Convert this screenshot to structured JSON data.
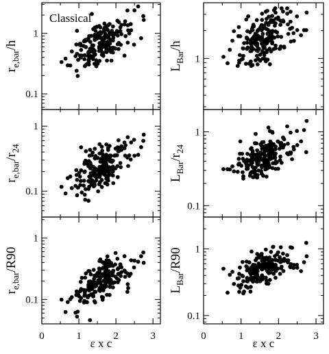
{
  "chart_data": {
    "type": "scatter",
    "xlabel": "ε x c",
    "annotation": "Classical",
    "panels": [
      {
        "id": "re_h",
        "ylabel": {
          "main": "r",
          "sub": "e,bar",
          "suffix": "/h"
        },
        "xlim": [
          0,
          3.2
        ],
        "ylim": [
          0.055,
          3.2
        ],
        "yscale": "log",
        "xticks": [
          0,
          1,
          2,
          3
        ],
        "yticks": [
          {
            "v": 0.1,
            "label": "0.1"
          },
          {
            "v": 1,
            "label": "1"
          }
        ],
        "center": 0.7,
        "slope": 0.3,
        "spread": 0.34,
        "xlow": 0.22,
        "xhigh": 0.3
      },
      {
        "id": "lbar_h",
        "ylabel": {
          "main": "L",
          "sub": "Bar",
          "suffix": "/h"
        },
        "xlim": [
          0,
          3.2
        ],
        "ylim": [
          0.28,
          4.0
        ],
        "yscale": "log",
        "xticks": [
          0,
          1,
          2,
          3
        ],
        "yticks": [
          {
            "v": 1,
            "label": "1"
          }
        ],
        "center": 1.65,
        "slope": 0.18,
        "spread": 0.26,
        "xlow": 0.22,
        "xhigh": 0.3
      },
      {
        "id": "re_r24",
        "ylabel": {
          "main": "r",
          "sub": "e,bar",
          "suffix": "/r",
          "suffix_sub": "24"
        },
        "xlim": [
          0,
          3.2
        ],
        "ylim": [
          0.04,
          1.8
        ],
        "yscale": "log",
        "xticks": [
          0,
          1,
          2,
          3
        ],
        "yticks": [
          {
            "v": 0.1,
            "label": "0.1"
          },
          {
            "v": 1,
            "label": "1"
          }
        ],
        "center": 0.22,
        "slope": 0.32,
        "spread": 0.33,
        "xlow": 0.22,
        "xhigh": 0.3
      },
      {
        "id": "lbar_r24",
        "ylabel": {
          "main": "L",
          "sub": "Bar",
          "suffix": "/r",
          "suffix_sub": "24"
        },
        "xlim": [
          0,
          3.2
        ],
        "ylim": [
          0.07,
          2.0
        ],
        "yscale": "log",
        "xticks": [
          0,
          1,
          2,
          3
        ],
        "yticks": [
          {
            "v": 0.1,
            "label": "0.1"
          },
          {
            "v": 1,
            "label": "1"
          }
        ],
        "center": 0.48,
        "slope": 0.26,
        "spread": 0.27,
        "xlow": 0.22,
        "xhigh": 0.3
      },
      {
        "id": "re_r90",
        "ylabel": {
          "main": "r",
          "sub": "e,bar",
          "suffix": "/R90"
        },
        "xlim": [
          0,
          3.2
        ],
        "ylim": [
          0.04,
          2.2
        ],
        "yscale": "log",
        "xticks": [
          0,
          1,
          2,
          3
        ],
        "xticklabels": [
          "0",
          "1",
          "2",
          "3"
        ],
        "yticks": [
          {
            "v": 0.1,
            "label": "0.1"
          },
          {
            "v": 1,
            "label": "1"
          }
        ],
        "center": 0.2,
        "slope": 0.34,
        "spread": 0.3,
        "xlow": 0.22,
        "xhigh": 0.3
      },
      {
        "id": "lbar_r90",
        "ylabel": {
          "main": "L",
          "sub": "Bar",
          "suffix": "/R90"
        },
        "xlim": [
          0,
          3.2
        ],
        "ylim": [
          0.075,
          3.0
        ],
        "yscale": "log",
        "xticks": [
          0,
          1,
          2,
          3
        ],
        "xticklabels": [
          "0",
          "1",
          "2",
          "3"
        ],
        "yticks": [
          {
            "v": 0.1,
            "label": "0.1"
          },
          {
            "v": 1,
            "label": "1"
          }
        ],
        "center": 0.5,
        "slope": 0.22,
        "spread": 0.25,
        "xlow": 0.22,
        "xhigh": 0.3
      }
    ]
  }
}
